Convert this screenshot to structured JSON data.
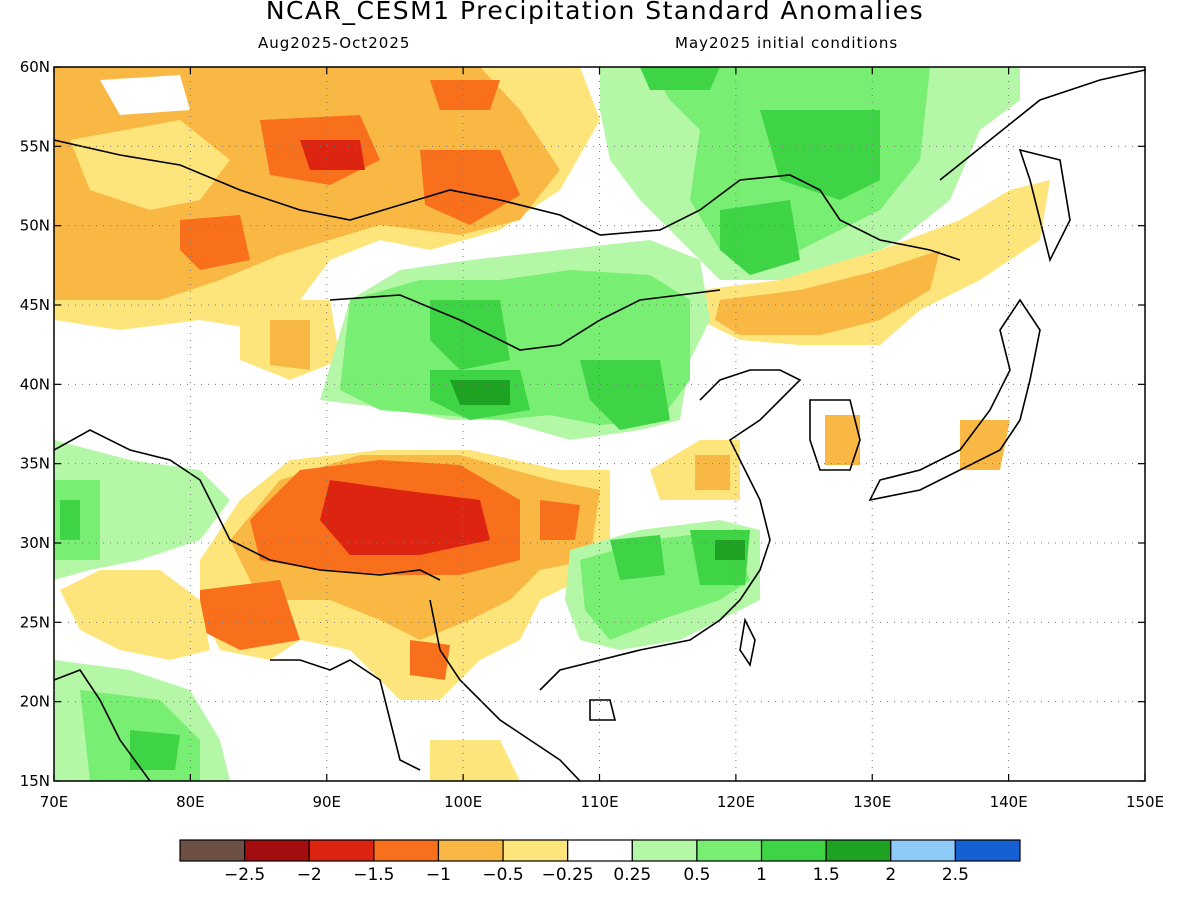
{
  "title": "NCAR_CESM1 Precipitation Standard Anomalies",
  "period": "Aug2025-Oct2025",
  "init": "May2025 initial conditions",
  "lat_labels": [
    "60N",
    "55N",
    "50N",
    "45N",
    "40N",
    "35N",
    "30N",
    "25N",
    "20N",
    "15N"
  ],
  "lon_labels": [
    "70E",
    "80E",
    "90E",
    "100E",
    "110E",
    "120E",
    "130E",
    "140E",
    "150E"
  ],
  "map": {
    "lon_range": [
      70,
      150
    ],
    "lat_range": [
      15,
      60
    ]
  },
  "colorbar": {
    "colors": [
      "#6e4f46",
      "#a40d0f",
      "#dd2410",
      "#f8701b",
      "#f9b744",
      "#fde57c",
      "#ffffff",
      "#b4f7a6",
      "#78ee73",
      "#3ed446",
      "#1ea222",
      "#8fcbf9",
      "#1561d4"
    ],
    "labels": [
      "-2.5",
      "-2",
      "-1.5",
      "-1",
      "-0.5",
      "-0.25",
      "0.25",
      "0.5",
      "1",
      "1.5",
      "2",
      "2.5"
    ]
  }
}
